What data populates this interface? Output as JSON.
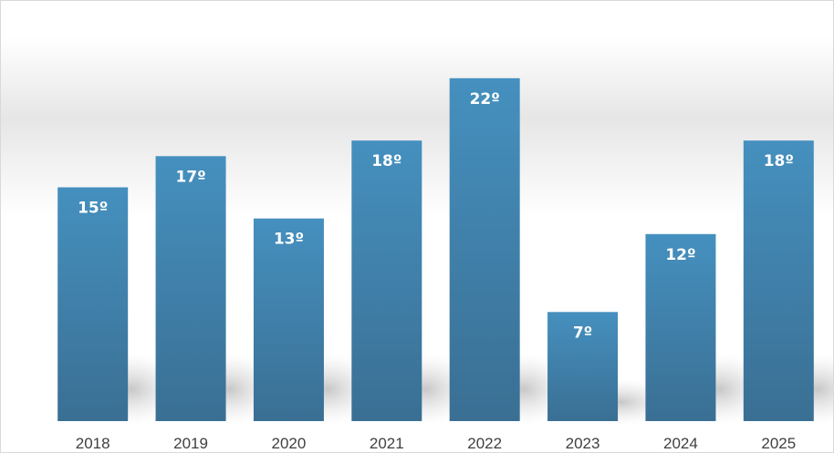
{
  "chart_data": {
    "type": "bar",
    "categories": [
      "2018",
      "2019",
      "2020",
      "2021",
      "2022",
      "2023",
      "2024",
      "2025"
    ],
    "values": [
      15,
      17,
      13,
      18,
      22,
      7,
      12,
      18
    ],
    "data_labels": [
      "15º",
      "17º",
      "13º",
      "18º",
      "22º",
      "7º",
      "12º",
      "18º"
    ],
    "ylim": [
      0,
      24
    ],
    "grid": false,
    "legend": "none",
    "colors": {
      "bar_top": "#4590BF",
      "bar_bottom": "#3A6F93",
      "label": "#FFFFFF",
      "tick": "#404040",
      "shadow": "#BFBFBF"
    }
  }
}
